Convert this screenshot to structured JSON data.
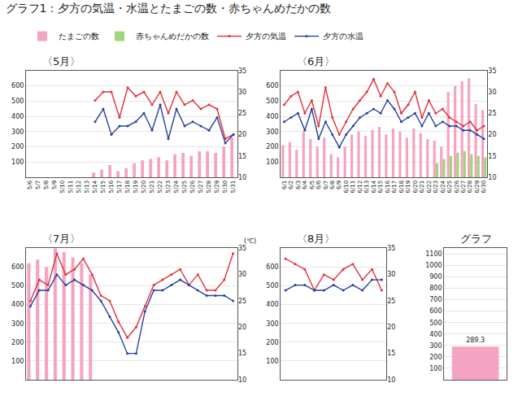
{
  "title": "グラフ1：夕方の気温・水温とたまごの数・赤ちゃんめだかの数",
  "chart_data": [
    {
      "type": "bar",
      "title": "〈5月〉",
      "grid": true,
      "legend": "top",
      "categories": [
        "5/6",
        "5/7",
        "5/8",
        "5/9",
        "5/10",
        "5/11",
        "5/12",
        "5/13",
        "5/14",
        "5/15",
        "5/16",
        "5/17",
        "5/18",
        "5/19",
        "5/20",
        "5/21",
        "5/22",
        "5/23",
        "5/24",
        "5/25",
        "5/26",
        "5/27",
        "5/28",
        "5/29",
        "5/30",
        "5/31"
      ],
      "ylim": [
        0,
        700
      ],
      "yticks": [
        100,
        200,
        300,
        400,
        500,
        600
      ],
      "y2lim": [
        10,
        35
      ],
      "y2ticks": [
        10,
        15,
        20,
        25,
        30,
        35
      ],
      "series": [
        {
          "name": "たまごの数",
          "type": "bar",
          "color": "#f5a3c2",
          "values": [
            null,
            null,
            null,
            null,
            null,
            null,
            null,
            null,
            30,
            50,
            80,
            40,
            60,
            90,
            110,
            120,
            130,
            110,
            150,
            160,
            140,
            170,
            170,
            160,
            200,
            260
          ]
        },
        {
          "name": "赤ちゃんめだかの数",
          "type": "bar",
          "color": "#9fd67c",
          "values": [
            null,
            null,
            null,
            null,
            null,
            null,
            null,
            null,
            null,
            null,
            null,
            null,
            null,
            null,
            null,
            null,
            null,
            null,
            null,
            null,
            null,
            null,
            null,
            null,
            null,
            null
          ]
        },
        {
          "name": "夕方の気温",
          "type": "line",
          "axis": "y2",
          "color": "#e3303a",
          "marker": "circle",
          "line_style": "solid",
          "values": [
            null,
            null,
            null,
            null,
            null,
            null,
            null,
            null,
            28,
            30,
            30,
            24,
            31,
            29,
            30,
            27,
            30,
            25,
            30,
            27,
            28,
            26,
            27,
            26,
            19,
            20
          ]
        },
        {
          "name": "夕方の水温",
          "type": "line",
          "axis": "y2",
          "color": "#27409e",
          "marker": "circle",
          "line_style": "solid",
          "values": [
            null,
            null,
            null,
            null,
            null,
            null,
            null,
            null,
            23,
            26,
            20,
            22,
            22,
            23,
            25,
            21,
            27,
            19,
            26,
            22,
            23,
            22,
            21,
            24,
            18,
            20
          ]
        }
      ]
    },
    {
      "type": "bar",
      "title": "〈6月〉",
      "grid": true,
      "categories": [
        "6/1",
        "6/2",
        "6/3",
        "6/4",
        "6/5",
        "6/6",
        "6/7",
        "6/8",
        "6/9",
        "6/10",
        "6/11",
        "6/12",
        "6/13",
        "6/14",
        "6/15",
        "6/16",
        "6/17",
        "6/18",
        "6/19",
        "6/20",
        "6/21",
        "6/22",
        "6/23",
        "6/24",
        "6/25",
        "6/26",
        "6/27",
        "6/28",
        "6/29",
        "6/30"
      ],
      "ylim": [
        0,
        700
      ],
      "yticks": [
        100,
        200,
        300,
        400,
        500,
        600
      ],
      "y2lim": [
        10,
        35
      ],
      "y2ticks": [
        10,
        15,
        20,
        25,
        30,
        35
      ],
      "series": [
        {
          "name": "たまごの数",
          "type": "bar",
          "color": "#f5a3c2",
          "values": [
            210,
            230,
            180,
            300,
            250,
            200,
            260,
            150,
            130,
            200,
            280,
            300,
            270,
            310,
            330,
            280,
            320,
            300,
            260,
            320,
            290,
            250,
            240,
            200,
            560,
            600,
            630,
            650,
            480,
            440
          ]
        },
        {
          "name": "赤ちゃんめだかの数",
          "type": "bar",
          "color": "#9fd67c",
          "values": [
            null,
            null,
            null,
            null,
            null,
            null,
            null,
            null,
            null,
            null,
            null,
            null,
            null,
            null,
            null,
            null,
            null,
            null,
            null,
            null,
            null,
            null,
            90,
            120,
            140,
            160,
            170,
            150,
            140,
            130
          ]
        },
        {
          "name": "夕方の気温",
          "type": "line",
          "axis": "y2",
          "color": "#e3303a",
          "marker": "circle",
          "line_style": "solid",
          "values": [
            27,
            29,
            30,
            25,
            28,
            22,
            31,
            24,
            20,
            23,
            26,
            28,
            30,
            33,
            29,
            32,
            30,
            25,
            27,
            30,
            24,
            28,
            25,
            26,
            24,
            23,
            22,
            23,
            21,
            22
          ]
        },
        {
          "name": "夕方の水温",
          "type": "line",
          "axis": "y2",
          "color": "#27409e",
          "marker": "circle",
          "line_style": "solid",
          "values": [
            23,
            24,
            25,
            21,
            26,
            19,
            23,
            20,
            17,
            20,
            22,
            24,
            25,
            26,
            25,
            28,
            26,
            23,
            24,
            25,
            22,
            25,
            22,
            23,
            22,
            22,
            21,
            21,
            20,
            19
          ]
        }
      ]
    },
    {
      "type": "bar",
      "title": "〈7月〉",
      "grid": true,
      "y2_label": "(℃)",
      "categories": [
        null,
        null,
        null,
        null,
        null,
        null,
        null,
        null,
        null,
        null,
        null,
        null,
        null,
        null,
        null,
        null,
        null,
        null,
        null,
        null,
        null,
        null,
        null,
        null
      ],
      "ylim": [
        0,
        700
      ],
      "yticks": [
        100,
        200,
        300,
        400,
        500,
        600
      ],
      "y2lim": [
        10,
        35
      ],
      "y2ticks": [
        10,
        15,
        20,
        25,
        30,
        35
      ],
      "series": [
        {
          "name": "たまごの数",
          "type": "bar",
          "color": "#f5a3c2",
          "values": [
            620,
            640,
            600,
            700,
            680,
            650,
            620,
            560,
            null,
            null,
            null,
            null,
            null,
            null,
            null,
            null,
            null,
            null,
            null,
            null,
            null,
            null,
            null,
            null
          ]
        },
        {
          "name": "赤ちゃんめだかの数",
          "type": "bar",
          "color": "#9fd67c",
          "values": [
            null,
            null,
            null,
            null,
            null,
            null,
            null,
            null,
            null,
            null,
            null,
            null,
            null,
            null,
            null,
            null,
            null,
            null,
            null,
            null,
            null,
            null,
            null,
            null
          ]
        },
        {
          "name": "夕方の気温",
          "type": "line",
          "axis": "y2",
          "color": "#e3303a",
          "marker": "circle",
          "line_style": "solid",
          "values": [
            25,
            29,
            28,
            34,
            30,
            31,
            33,
            30,
            26,
            25,
            21,
            18,
            20,
            24,
            28,
            29,
            30,
            31,
            28,
            30,
            27,
            27,
            29,
            34
          ]
        },
        {
          "name": "夕方の水温",
          "type": "line",
          "axis": "y2",
          "color": "#27409e",
          "marker": "circle",
          "line_style": "solid",
          "values": [
            24,
            27,
            27,
            30,
            28,
            29,
            28,
            27,
            25,
            22,
            19,
            15,
            15,
            23,
            27,
            27,
            28,
            29,
            28,
            27,
            26,
            26,
            26,
            25
          ]
        }
      ]
    },
    {
      "type": "bar",
      "title": "〈8月〉",
      "grid": true,
      "categories": [
        null,
        null,
        null,
        null,
        null,
        null,
        null,
        null,
        null,
        null,
        null
      ],
      "ylim": [
        0,
        700
      ],
      "yticks": [
        100,
        200,
        300,
        400,
        500,
        600
      ],
      "y2lim": [
        10,
        35
      ],
      "y2ticks": [
        10,
        15,
        20,
        25,
        30,
        35
      ],
      "series": [
        {
          "name": "たまごの数",
          "type": "bar",
          "color": "#f5a3c2",
          "values": [
            null,
            null,
            null,
            null,
            null,
            null,
            null,
            null,
            null,
            null,
            null
          ]
        },
        {
          "name": "赤ちゃんめだかの数",
          "type": "bar",
          "color": "#9fd67c",
          "values": [
            null,
            null,
            null,
            null,
            null,
            null,
            null,
            null,
            null,
            null,
            null
          ]
        },
        {
          "name": "夕方の気温",
          "type": "line",
          "axis": "y2",
          "color": "#e3303a",
          "marker": "circle",
          "line_style": "solid",
          "values": [
            33,
            32,
            31,
            27,
            30,
            29,
            31,
            32,
            29,
            31,
            27
          ]
        },
        {
          "name": "夕方の水温",
          "type": "line",
          "axis": "y2",
          "color": "#27409e",
          "marker": "circle",
          "line_style": "solid",
          "values": [
            27,
            28,
            28,
            27,
            27,
            28,
            27,
            28,
            27,
            29,
            29
          ]
        }
      ]
    },
    {
      "type": "bar",
      "title": "グラフ",
      "grid": true,
      "data_labels": true,
      "categories": [
        null
      ],
      "values": [
        289.3
      ],
      "color": "#f5a3c2",
      "ylim": [
        0,
        1150
      ],
      "yticks": [
        100,
        200,
        300,
        400,
        500,
        600,
        700,
        800,
        900,
        1000,
        1100
      ]
    }
  ]
}
